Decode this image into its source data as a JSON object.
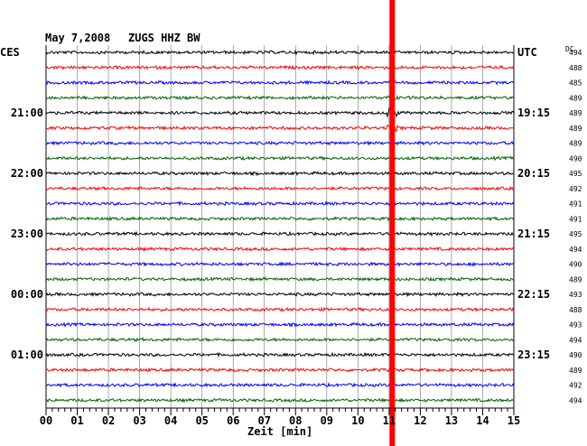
{
  "header": {
    "date": "May 7,2008",
    "station": "ZUGS HHZ BW",
    "left_tz": "CES",
    "right_tz": "UTC",
    "dc_label": "DC"
  },
  "chart_data": {
    "type": "line",
    "title": "May 7,2008   ZUGS HHZ BW",
    "xlabel": "Zeit [min]",
    "xlim": [
      0,
      15
    ],
    "x_ticks": [
      "00",
      "01",
      "02",
      "03",
      "04",
      "05",
      "06",
      "07",
      "08",
      "09",
      "10",
      "11",
      "12",
      "13",
      "14",
      "15"
    ],
    "trace_colors": [
      "#000000",
      "#ff0000",
      "#0000ff",
      "#006400"
    ],
    "rows": 24,
    "left_time_labels": [
      {
        "row": 4,
        "label": "21:00"
      },
      {
        "row": 8,
        "label": "22:00"
      },
      {
        "row": 12,
        "label": "23:00"
      },
      {
        "row": 16,
        "label": "00:00"
      },
      {
        "row": 20,
        "label": "01:00"
      }
    ],
    "right_time_labels": [
      {
        "row": 0,
        "label": "UTC"
      },
      {
        "row": 4,
        "label": "19:15"
      },
      {
        "row": 8,
        "label": "20:15"
      },
      {
        "row": 12,
        "label": "21:15"
      },
      {
        "row": 16,
        "label": "22:15"
      },
      {
        "row": 20,
        "label": "23:15"
      }
    ],
    "dc_values": [
      494,
      488,
      485,
      489,
      489,
      489,
      489,
      490,
      495,
      492,
      491,
      491,
      495,
      494,
      490,
      489,
      493,
      488,
      493,
      494,
      490,
      489,
      492,
      494
    ],
    "event": {
      "minute": 11.1,
      "color": "#ff0000",
      "label": "event marker"
    }
  }
}
